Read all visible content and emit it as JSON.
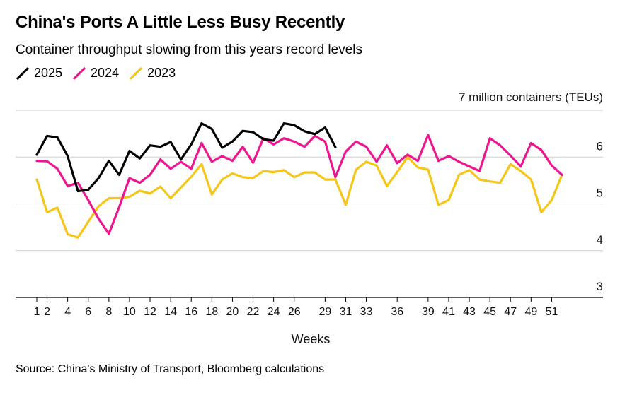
{
  "header": {
    "title": "China's Ports A Little Less Busy Recently",
    "subtitle": "Container throughput slowing from this years record levels"
  },
  "source": "Source: China's Ministry of Transport, Bloomberg calculations",
  "colors": {
    "2025": "#000000",
    "2024": "#ee1590",
    "2023": "#f5c518"
  },
  "chart_data": {
    "type": "line",
    "title": "China's Ports A Little Less Busy Recently",
    "subtitle": "Container throughput slowing from this years record levels",
    "xlabel": "Weeks",
    "unit_label": "7 million containers (TEUs)",
    "ylim": [
      3,
      7
    ],
    "xlim": [
      1,
      53
    ],
    "yticks": [
      3,
      4,
      5,
      6
    ],
    "xticks": [
      1,
      2,
      4,
      6,
      8,
      10,
      12,
      14,
      16,
      18,
      20,
      22,
      24,
      26,
      29,
      31,
      33,
      36,
      39,
      41,
      43,
      45,
      47,
      49,
      51
    ],
    "grid": "horizontal",
    "legend_position": "top-left",
    "series": [
      {
        "name": "2025",
        "color": "#000000",
        "x": [
          1,
          2,
          3,
          4,
          5,
          6,
          7,
          8,
          9,
          10,
          11,
          12,
          13,
          14,
          15,
          16,
          17,
          18,
          19,
          20,
          21,
          22,
          23,
          24,
          25,
          26,
          27,
          28,
          29,
          30
        ],
        "values": [
          6.05,
          6.45,
          6.42,
          6.02,
          5.27,
          5.3,
          5.55,
          5.92,
          5.62,
          6.13,
          5.97,
          6.25,
          6.22,
          6.32,
          5.95,
          6.27,
          6.72,
          6.6,
          6.2,
          6.33,
          6.56,
          6.53,
          6.38,
          6.35,
          6.72,
          6.68,
          6.55,
          6.49,
          6.63,
          6.21
        ]
      },
      {
        "name": "2024",
        "color": "#ee1590",
        "x": [
          1,
          2,
          3,
          4,
          5,
          6,
          7,
          8,
          9,
          10,
          11,
          12,
          13,
          14,
          15,
          16,
          17,
          18,
          19,
          20,
          21,
          22,
          23,
          24,
          25,
          26,
          27,
          28,
          29,
          30,
          31,
          32,
          33,
          34,
          35,
          36,
          37,
          38,
          39,
          40,
          41,
          42,
          43,
          44,
          45,
          46,
          47,
          48,
          49,
          50,
          51,
          52
        ],
        "values": [
          5.92,
          5.91,
          5.75,
          5.38,
          5.45,
          5.08,
          4.68,
          4.36,
          4.93,
          5.55,
          5.45,
          5.62,
          5.95,
          5.75,
          5.9,
          5.75,
          6.3,
          5.9,
          6.02,
          5.92,
          6.22,
          5.88,
          6.4,
          6.27,
          6.4,
          6.33,
          6.22,
          6.45,
          6.33,
          5.57,
          6.12,
          6.33,
          6.22,
          5.9,
          6.25,
          5.87,
          6.05,
          5.92,
          6.47,
          5.92,
          6.02,
          5.9,
          5.8,
          5.7,
          6.4,
          6.25,
          6.03,
          5.8,
          6.3,
          6.15,
          5.82,
          5.62
        ]
      },
      {
        "name": "2023",
        "color": "#f5c518",
        "x": [
          1,
          2,
          3,
          4,
          5,
          6,
          7,
          8,
          9,
          10,
          11,
          12,
          13,
          14,
          15,
          16,
          17,
          18,
          19,
          20,
          21,
          22,
          23,
          24,
          25,
          26,
          27,
          28,
          29,
          30,
          31,
          32,
          33,
          34,
          35,
          36,
          37,
          38,
          39,
          40,
          41,
          42,
          43,
          44,
          45,
          46,
          47,
          48,
          49,
          50,
          51,
          52
        ],
        "values": [
          5.52,
          4.82,
          4.92,
          4.35,
          4.28,
          4.62,
          4.95,
          5.12,
          5.12,
          5.15,
          5.28,
          5.22,
          5.37,
          5.12,
          5.35,
          5.58,
          5.85,
          5.2,
          5.52,
          5.65,
          5.57,
          5.55,
          5.7,
          5.68,
          5.72,
          5.57,
          5.67,
          5.67,
          5.52,
          5.52,
          4.98,
          5.73,
          5.9,
          5.82,
          5.38,
          5.68,
          6.0,
          5.78,
          5.73,
          4.98,
          5.08,
          5.62,
          5.72,
          5.52,
          5.48,
          5.45,
          5.85,
          5.7,
          5.52,
          4.82,
          5.08,
          5.62
        ]
      }
    ]
  }
}
